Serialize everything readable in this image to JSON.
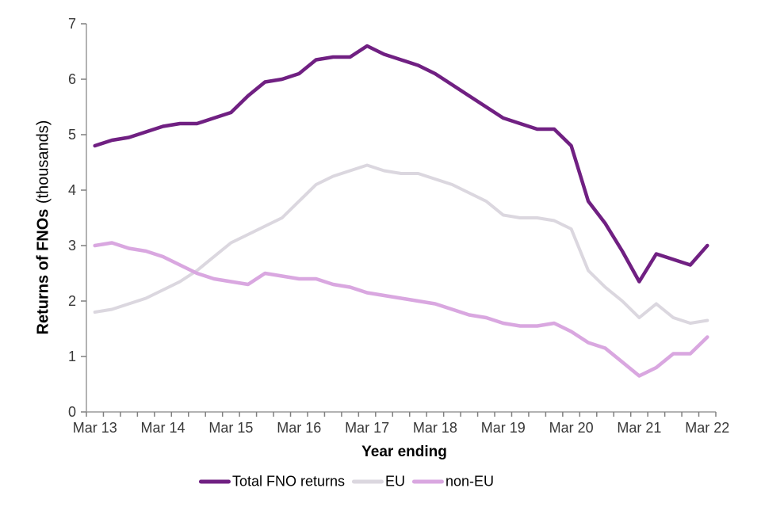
{
  "chart_data": {
    "type": "line",
    "title": "",
    "xlabel": "Year ending",
    "ylabel_bold": "Returns of FNOs",
    "ylabel_regular": "(thousands)",
    "ylim": [
      0,
      7
    ],
    "y_ticks": [
      0,
      1,
      2,
      3,
      4,
      5,
      6,
      7
    ],
    "grid": false,
    "legend_position": "bottom",
    "axis_color": "#9A9A9A",
    "tick_color": "#7F7F7F",
    "tick_label_color": "#383838",
    "x": [
      "Mar 13",
      "Jun 13",
      "Sep 13",
      "Dec 13",
      "Mar 14",
      "Jun 14",
      "Sep 14",
      "Dec 14",
      "Mar 15",
      "Jun 15",
      "Sep 15",
      "Dec 15",
      "Mar 16",
      "Jun 16",
      "Sep 16",
      "Dec 16",
      "Mar 17",
      "Jun 17",
      "Sep 17",
      "Dec 17",
      "Mar 18",
      "Jun 18",
      "Sep 18",
      "Dec 18",
      "Mar 19",
      "Jun 19",
      "Sep 19",
      "Dec 19",
      "Mar 20",
      "Jun 20",
      "Sep 20",
      "Dec 20",
      "Mar 21",
      "Jun 21",
      "Sep 21",
      "Dec 21",
      "Mar 22"
    ],
    "x_axis_labels_shown": [
      "Mar 13",
      "Mar 14",
      "Mar 15",
      "Mar 16",
      "Mar 17",
      "Mar 18",
      "Mar 19",
      "Mar 20",
      "Mar 21",
      "Mar 22"
    ],
    "series": [
      {
        "name": "Total FNO returns",
        "color": "#702082",
        "stroke_width": 4.5,
        "values": [
          4.8,
          4.9,
          4.95,
          5.05,
          5.15,
          5.2,
          5.2,
          5.3,
          5.4,
          5.7,
          5.95,
          6.0,
          6.1,
          6.35,
          6.4,
          6.4,
          6.6,
          6.45,
          6.35,
          6.25,
          6.1,
          5.9,
          5.7,
          5.5,
          5.3,
          5.2,
          5.1,
          5.1,
          4.8,
          3.8,
          3.4,
          2.9,
          2.35,
          2.85,
          2.75,
          2.65,
          3.0
        ]
      },
      {
        "name": "EU",
        "color": "#DBD7DF",
        "stroke_width": 4,
        "values": [
          1.8,
          1.85,
          1.95,
          2.05,
          2.2,
          2.35,
          2.55,
          2.8,
          3.05,
          3.2,
          3.35,
          3.5,
          3.8,
          4.1,
          4.25,
          4.35,
          4.45,
          4.35,
          4.3,
          4.3,
          4.2,
          4.1,
          3.95,
          3.8,
          3.55,
          3.5,
          3.5,
          3.45,
          3.3,
          2.55,
          2.25,
          2.0,
          1.7,
          1.95,
          1.7,
          1.6,
          1.65
        ]
      },
      {
        "name": "non-EU",
        "color": "#D9A7E0",
        "stroke_width": 4.5,
        "values": [
          3.0,
          3.05,
          2.95,
          2.9,
          2.8,
          2.65,
          2.5,
          2.4,
          2.35,
          2.3,
          2.5,
          2.45,
          2.4,
          2.4,
          2.3,
          2.25,
          2.15,
          2.1,
          2.05,
          2.0,
          1.95,
          1.85,
          1.75,
          1.7,
          1.6,
          1.55,
          1.55,
          1.6,
          1.45,
          1.25,
          1.15,
          0.9,
          0.65,
          0.8,
          1.05,
          1.05,
          1.35
        ]
      }
    ]
  }
}
